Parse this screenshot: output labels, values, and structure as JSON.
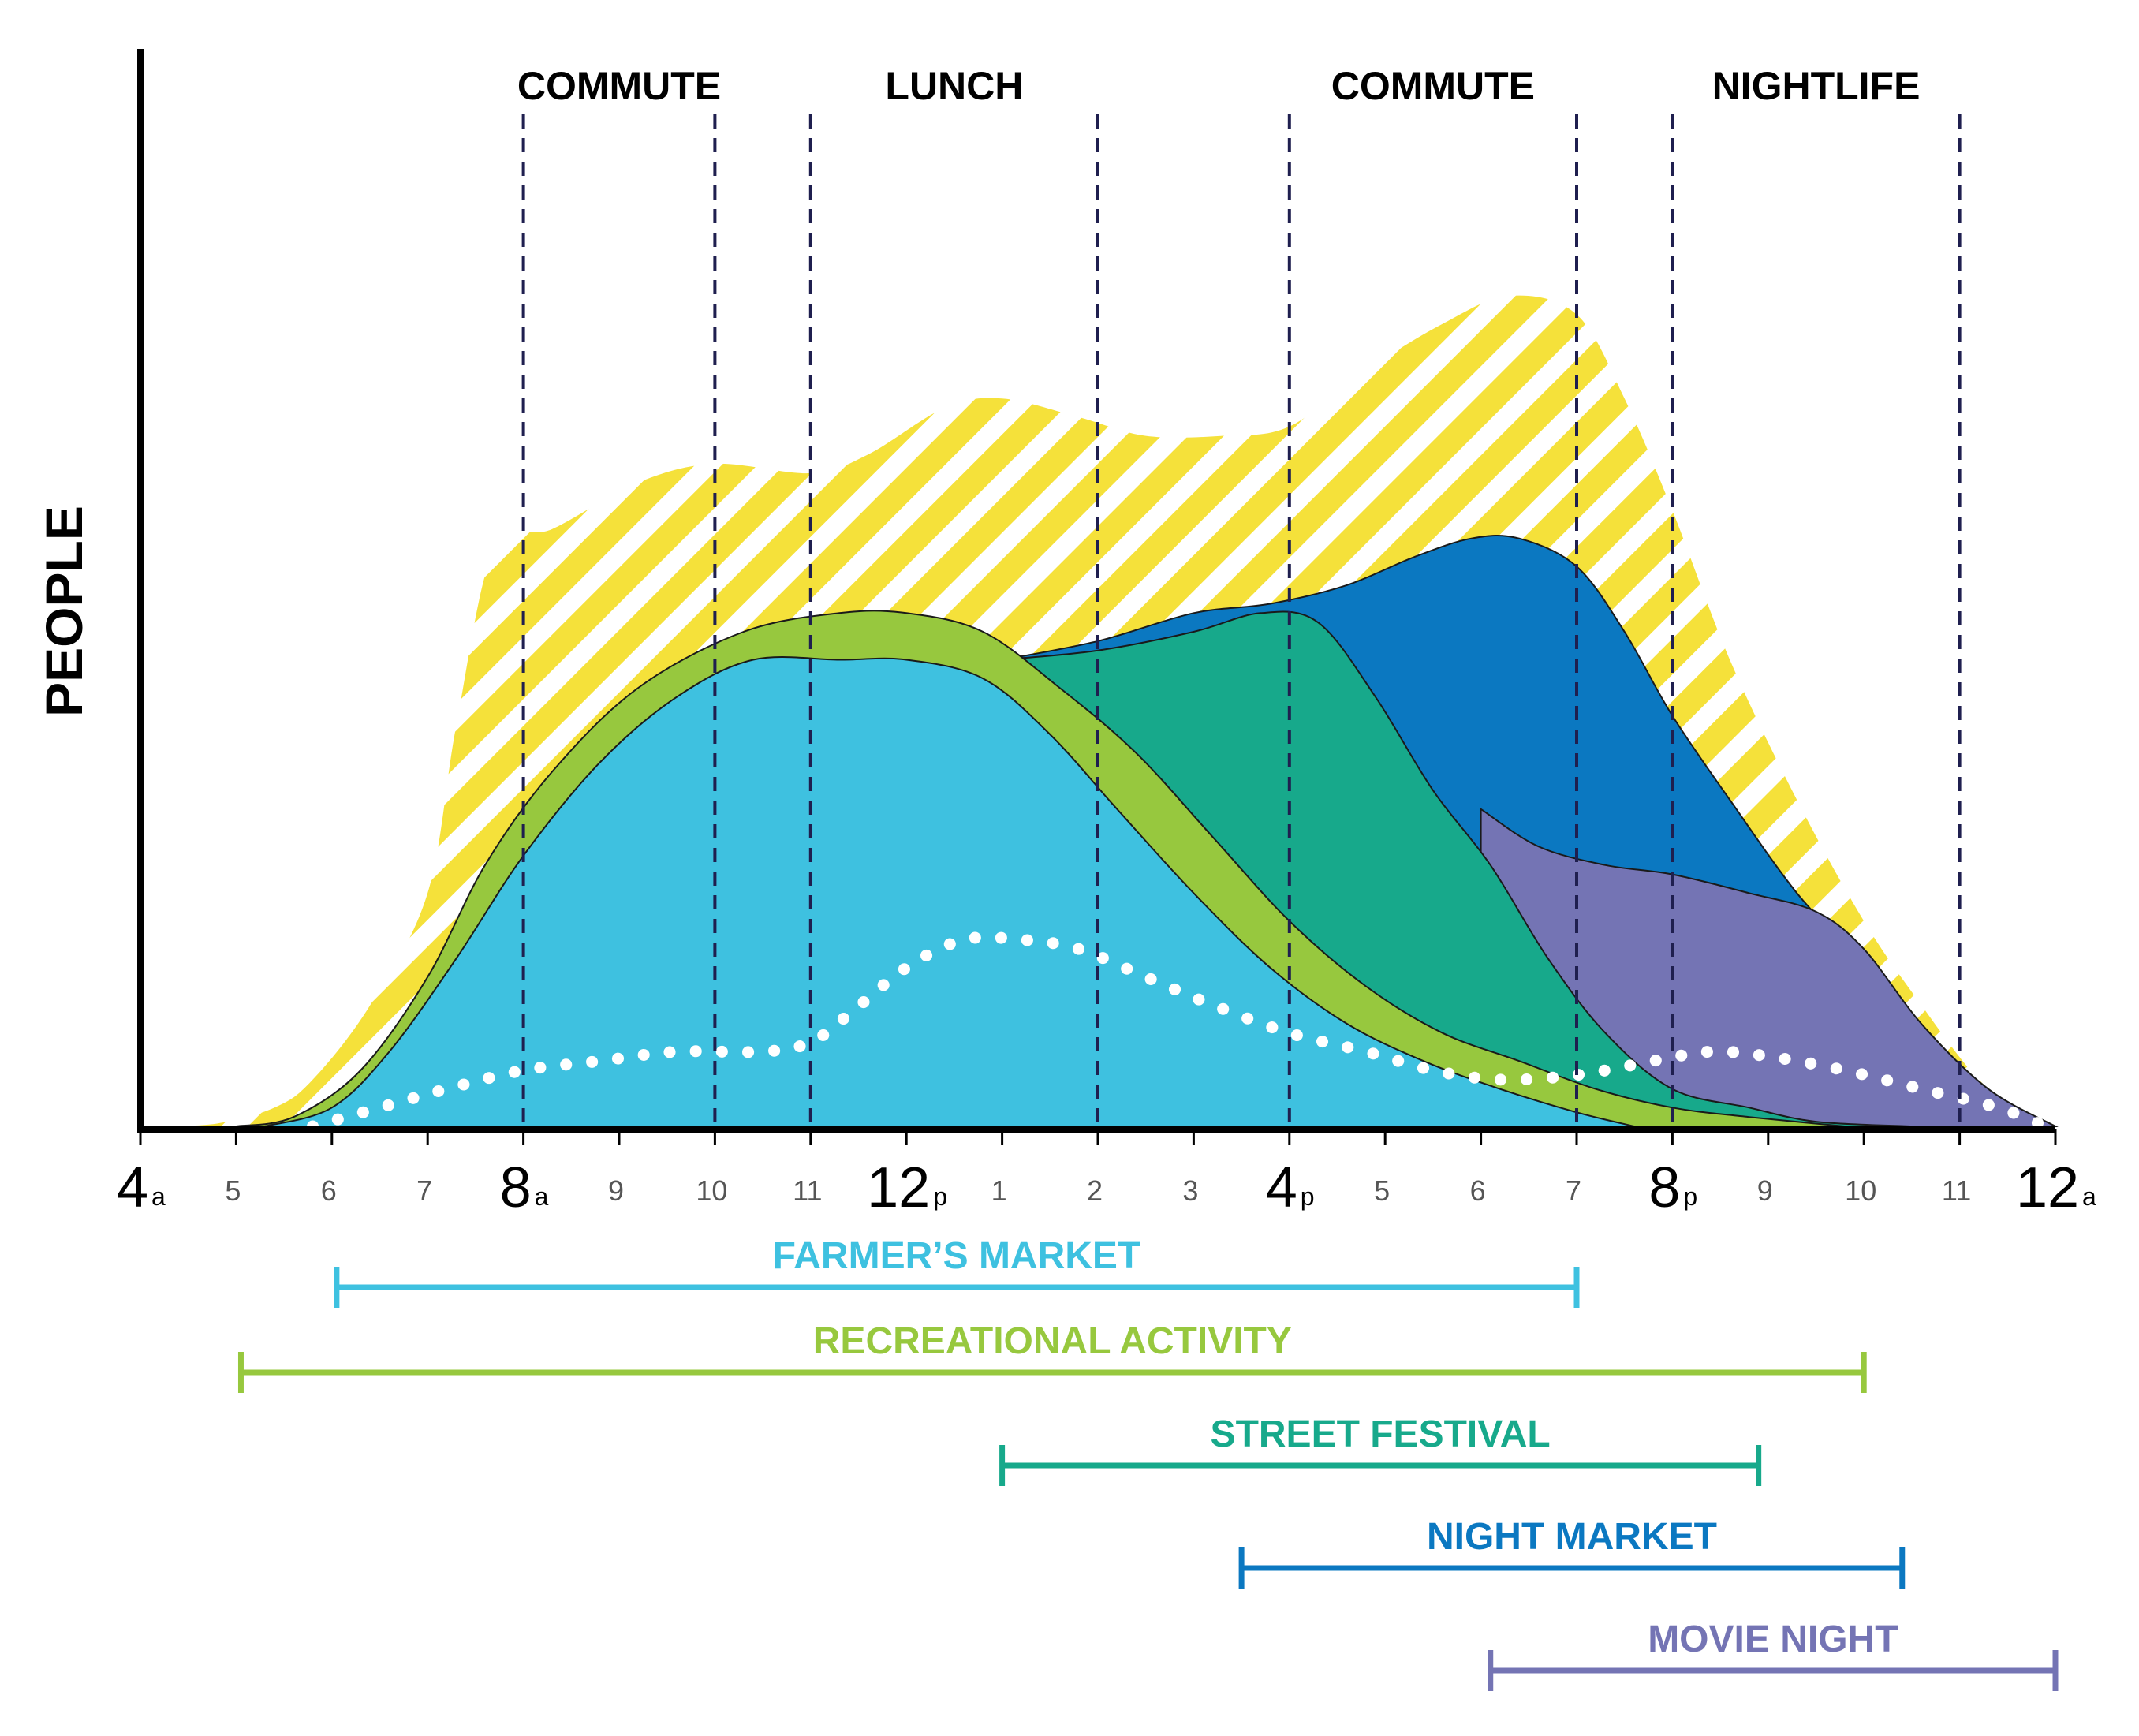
{
  "chart_data": {
    "type": "area",
    "ylabel": "PEOPLE",
    "xlim": [
      4,
      24
    ],
    "x_ticks": [
      {
        "x": 4,
        "num": "4",
        "sub": "a",
        "major": true
      },
      {
        "x": 5,
        "num": "5",
        "sub": "",
        "major": false
      },
      {
        "x": 6,
        "num": "6",
        "sub": "",
        "major": false
      },
      {
        "x": 7,
        "num": "7",
        "sub": "",
        "major": false
      },
      {
        "x": 8,
        "num": "8",
        "sub": "a",
        "major": true
      },
      {
        "x": 9,
        "num": "9",
        "sub": "",
        "major": false
      },
      {
        "x": 10,
        "num": "10",
        "sub": "",
        "major": false
      },
      {
        "x": 11,
        "num": "11",
        "sub": "",
        "major": false
      },
      {
        "x": 12,
        "num": "12",
        "sub": "p",
        "major": true
      },
      {
        "x": 13,
        "num": "1",
        "sub": "",
        "major": false
      },
      {
        "x": 14,
        "num": "2",
        "sub": "",
        "major": false
      },
      {
        "x": 15,
        "num": "3",
        "sub": "",
        "major": false
      },
      {
        "x": 16,
        "num": "4",
        "sub": "p",
        "major": true
      },
      {
        "x": 17,
        "num": "5",
        "sub": "",
        "major": false
      },
      {
        "x": 18,
        "num": "6",
        "sub": "",
        "major": false
      },
      {
        "x": 19,
        "num": "7",
        "sub": "",
        "major": false
      },
      {
        "x": 20,
        "num": "8",
        "sub": "p",
        "major": true
      },
      {
        "x": 21,
        "num": "9",
        "sub": "",
        "major": false
      },
      {
        "x": 22,
        "num": "10",
        "sub": "",
        "major": false
      },
      {
        "x": 23,
        "num": "11",
        "sub": "",
        "major": false
      },
      {
        "x": 24,
        "num": "12",
        "sub": "a",
        "major": true
      }
    ],
    "time_bands": [
      {
        "label": "COMMUTE",
        "start": 8.0,
        "end": 10.0
      },
      {
        "label": "LUNCH",
        "start": 11.0,
        "end": 14.0
      },
      {
        "label": "COMMUTE",
        "start": 16.0,
        "end": 19.0
      },
      {
        "label": "NIGHTLIFE",
        "start": 20.0,
        "end": 23.0
      }
    ],
    "ylim": [
      0,
      100
    ],
    "series": [
      {
        "color": "#F5E13A",
        "pattern": "diagonal-stripes",
        "points": [
          [
            4.2,
            0
          ],
          [
            4.8,
            0.3
          ],
          [
            5.4,
            2
          ],
          [
            5.8,
            5
          ],
          [
            6.4,
            13
          ],
          [
            7.0,
            25
          ],
          [
            7.3,
            43
          ],
          [
            7.7,
            62
          ],
          [
            8.3,
            64
          ],
          [
            9.2,
            69
          ],
          [
            10.0,
            71
          ],
          [
            11.0,
            70
          ],
          [
            11.6,
            72
          ],
          [
            12.4,
            77
          ],
          [
            13.0,
            78
          ],
          [
            13.8,
            76
          ],
          [
            14.5,
            74
          ],
          [
            15.3,
            74
          ],
          [
            16.0,
            75
          ],
          [
            16.8,
            81
          ],
          [
            17.6,
            86
          ],
          [
            18.3,
            89
          ],
          [
            19.0,
            87
          ],
          [
            19.5,
            78
          ],
          [
            20.0,
            66
          ],
          [
            20.6,
            50
          ],
          [
            21.3,
            35
          ],
          [
            22.0,
            22
          ],
          [
            22.6,
            13
          ],
          [
            23.2,
            5
          ],
          [
            23.8,
            0
          ]
        ]
      },
      {
        "color": "#0B78C1",
        "points": [
          [
            13.0,
            50
          ],
          [
            14.0,
            52
          ],
          [
            15.0,
            55
          ],
          [
            15.8,
            56
          ],
          [
            16.6,
            58
          ],
          [
            17.3,
            61
          ],
          [
            17.9,
            63
          ],
          [
            18.4,
            63
          ],
          [
            19.0,
            60
          ],
          [
            19.5,
            53
          ],
          [
            20.0,
            44
          ],
          [
            20.6,
            35
          ],
          [
            21.3,
            25
          ],
          [
            22.0,
            17
          ],
          [
            22.6,
            7
          ],
          [
            23.3,
            2
          ],
          [
            24.0,
            0
          ]
        ]
      },
      {
        "color": "#7474B4",
        "points": [
          [
            18.0,
            34
          ],
          [
            18.6,
            30
          ],
          [
            19.3,
            28
          ],
          [
            20.0,
            27
          ],
          [
            20.8,
            25
          ],
          [
            21.5,
            23
          ],
          [
            22.0,
            19
          ],
          [
            22.6,
            11
          ],
          [
            23.3,
            4
          ],
          [
            24.0,
            0
          ]
        ]
      },
      {
        "color": "#17A98B",
        "points": [
          [
            13.0,
            50
          ],
          [
            14.0,
            51
          ],
          [
            15.0,
            53
          ],
          [
            15.7,
            55
          ],
          [
            16.3,
            54
          ],
          [
            16.9,
            46
          ],
          [
            17.5,
            36
          ],
          [
            18.1,
            28
          ],
          [
            18.7,
            18
          ],
          [
            19.3,
            10
          ],
          [
            20.0,
            4
          ],
          [
            20.8,
            2
          ],
          [
            21.5,
            0.5
          ],
          [
            22.5,
            0
          ]
        ]
      },
      {
        "color": "#97C83E",
        "points": [
          [
            5.0,
            0
          ],
          [
            5.6,
            1
          ],
          [
            6.3,
            6
          ],
          [
            7.0,
            16
          ],
          [
            7.6,
            28
          ],
          [
            8.3,
            38
          ],
          [
            9.2,
            47
          ],
          [
            10.3,
            53
          ],
          [
            11.3,
            55
          ],
          [
            12.0,
            55
          ],
          [
            12.8,
            53
          ],
          [
            13.6,
            47
          ],
          [
            14.4,
            40
          ],
          [
            15.2,
            31
          ],
          [
            16.0,
            22
          ],
          [
            16.8,
            15
          ],
          [
            17.6,
            10
          ],
          [
            18.4,
            7
          ],
          [
            19.2,
            4
          ],
          [
            20.0,
            2
          ],
          [
            20.8,
            1
          ],
          [
            21.8,
            0
          ]
        ]
      },
      {
        "color": "#3EC1E0",
        "points": [
          [
            5.3,
            0
          ],
          [
            6.0,
            2
          ],
          [
            6.6,
            8
          ],
          [
            7.3,
            18
          ],
          [
            8.0,
            29
          ],
          [
            8.8,
            39
          ],
          [
            9.6,
            46
          ],
          [
            10.4,
            50
          ],
          [
            11.3,
            50
          ],
          [
            12.0,
            50
          ],
          [
            12.8,
            48
          ],
          [
            13.5,
            42
          ],
          [
            14.2,
            34
          ],
          [
            15.0,
            25
          ],
          [
            15.8,
            17
          ],
          [
            16.6,
            11
          ],
          [
            17.4,
            7
          ],
          [
            18.2,
            4
          ],
          [
            19.0,
            1.5
          ],
          [
            19.6,
            0
          ]
        ]
      }
    ],
    "dotted_line": {
      "color": "#FFFFFF",
      "points": [
        [
          5.8,
          0
        ],
        [
          6.5,
          2
        ],
        [
          7.2,
          4
        ],
        [
          8.0,
          6
        ],
        [
          8.8,
          7
        ],
        [
          9.6,
          8
        ],
        [
          10.5,
          8
        ],
        [
          11.0,
          9
        ],
        [
          11.4,
          12
        ],
        [
          12.0,
          17
        ],
        [
          12.6,
          20
        ],
        [
          13.2,
          20
        ],
        [
          13.8,
          19
        ],
        [
          14.5,
          16
        ],
        [
          15.2,
          13
        ],
        [
          16.0,
          10
        ],
        [
          16.8,
          8
        ],
        [
          17.5,
          6
        ],
        [
          18.2,
          5
        ],
        [
          19.0,
          5.5
        ],
        [
          19.8,
          7
        ],
        [
          20.4,
          8
        ],
        [
          21.0,
          7.5
        ],
        [
          21.8,
          6
        ],
        [
          22.6,
          4
        ],
        [
          23.4,
          2
        ],
        [
          23.9,
          0
        ]
      ]
    },
    "ranges": [
      {
        "label": "FARMER’S MARKET",
        "start": 6.05,
        "end": 19.0,
        "color": "#3EC1E0"
      },
      {
        "label": "RECREATIONAL ACTIVITY",
        "start": 5.05,
        "end": 22.0,
        "color": "#97C83E"
      },
      {
        "label": "STREET FESTIVAL",
        "start": 13.0,
        "end": 20.9,
        "color": "#17A98B"
      },
      {
        "label": "NIGHT MARKET",
        "start": 15.5,
        "end": 22.4,
        "color": "#0B78C1"
      },
      {
        "label": "MOVIE NIGHT",
        "start": 18.1,
        "end": 24.0,
        "color": "#7474B4"
      }
    ]
  }
}
